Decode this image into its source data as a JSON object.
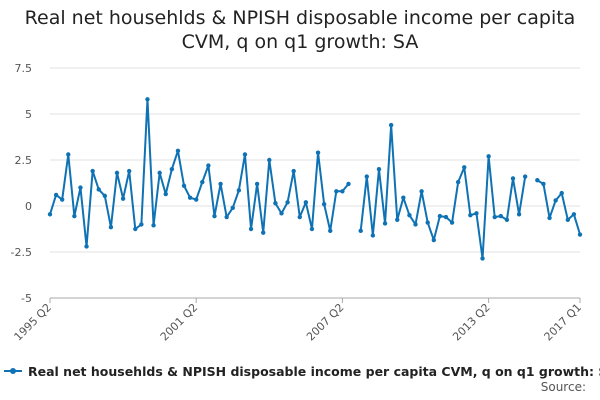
{
  "title": {
    "line1": "Real net househlds & NPISH disposable income per capita",
    "line2": "CVM, q on q1 growth: SA"
  },
  "legend_label": "Real net househlds & NPISH disposable income per capita CVM, q on q1 growth: SA",
  "source_label": "Source:",
  "colors": {
    "series": "#0f72b4",
    "grid": "#e0e0e0",
    "axis": "#aaaaaa"
  },
  "chart_data": {
    "type": "line",
    "title": "Real net househlds & NPISH disposable income per capita CVM, q on q1 growth: SA",
    "xlabel": "",
    "ylabel": "",
    "ylim": [
      -5,
      7.5
    ],
    "yticks": [
      "7.5",
      "5",
      "2.5",
      "0",
      "-2.5",
      "-5"
    ],
    "xtick_labels": [
      "1995 Q2",
      "2001 Q2",
      "2007 Q2",
      "2013 Q2",
      "2017 Q1"
    ],
    "x_start": "1995 Q2",
    "x_end": "2017 Q1",
    "grid": "horizontal",
    "legend_position": "bottom",
    "series": [
      {
        "name": "Real net househlds & NPISH disposable income per capita CVM, q on q1 growth: SA",
        "values": [
          -0.45,
          0.6,
          0.35,
          2.8,
          -0.55,
          1.0,
          -2.2,
          1.9,
          0.9,
          0.55,
          -1.15,
          1.8,
          0.4,
          1.9,
          -1.25,
          -1.0,
          5.8,
          -1.05,
          1.8,
          0.65,
          2.0,
          3.0,
          1.1,
          0.45,
          0.35,
          1.3,
          2.2,
          -0.55,
          1.2,
          -0.6,
          -0.1,
          0.85,
          2.8,
          -1.25,
          1.2,
          -1.45,
          2.5,
          0.15,
          -0.4,
          0.2,
          1.9,
          -0.6,
          0.2,
          -1.25,
          2.9,
          0.1,
          -1.35,
          0.8,
          0.8,
          1.2,
          null,
          -1.35,
          1.6,
          -1.6,
          2.0,
          -0.95,
          4.4,
          -0.75,
          0.45,
          -0.5,
          -1.0,
          0.8,
          -0.9,
          -1.85,
          -0.55,
          -0.6,
          -0.9,
          1.3,
          2.1,
          -0.5,
          -0.4,
          -2.85,
          2.7,
          -0.6,
          -0.55,
          -0.75,
          1.5,
          -0.45,
          1.6,
          null,
          1.4,
          1.2,
          -0.65,
          0.3,
          0.7,
          -0.75,
          -0.45,
          -1.55
        ]
      }
    ]
  }
}
